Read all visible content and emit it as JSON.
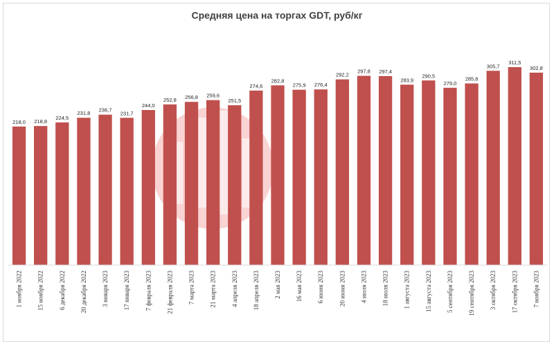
{
  "chart_data": {
    "type": "bar",
    "title": "Средняя цена на торгах GDT, руб/кг",
    "xlabel": "",
    "ylabel": "",
    "ylim": [
      0,
      330
    ],
    "grid": false,
    "legend": "none",
    "bar_color": "#c0504d",
    "categories": [
      "1 ноября 2022",
      "15 ноября 2022",
      "6 декабря 2022",
      "20 декабря 2022",
      "3 января 2023",
      "17 января 2023",
      "7 февраля 2023",
      "21 февраля 2023",
      "7 марта 2023",
      "21 марта 2023",
      "4 апреля 2023",
      "18 апреля 2023",
      "2 мая 2023",
      "16 мая 2023",
      "6 июня 2023",
      "20 июня 2023",
      "4 июля 2023",
      "18 июля 2023",
      "1 августа 2023",
      "15 августа 2023",
      "5 сентября 2023",
      "19 сентября 2023",
      "3 октября 2023",
      "17 октября 2023",
      "7 ноября 2023"
    ],
    "values": [
      218.0,
      218.8,
      224.5,
      231.8,
      236.7,
      231.7,
      244.0,
      252.8,
      256.8,
      259.6,
      251.5,
      274.6,
      282.8,
      275.9,
      276.4,
      292.2,
      297.8,
      297.4,
      283.9,
      290.5,
      279.0,
      285.8,
      305.7,
      311.5,
      302.8
    ],
    "labels": [
      "218,0",
      "218,8",
      "224,5",
      "231,8",
      "236,7",
      "231,7",
      "244,0",
      "252,8",
      "256,8",
      "259,6",
      "251,5",
      "274,6",
      "282,8",
      "275,9",
      "276,4",
      "292,2",
      "297,8",
      "297,4",
      "283,9",
      "290,5",
      "279,0",
      "285,8",
      "305,7",
      "311,5",
      "302,8"
    ]
  }
}
